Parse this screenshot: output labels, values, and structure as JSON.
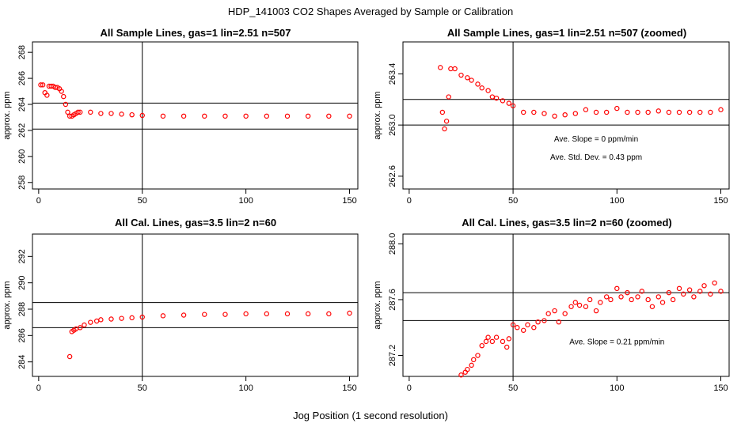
{
  "page": {
    "title": "HDP_141003  CO2 Shapes Averaged by Sample or Calibration",
    "xlabel": "Jog Position (1 second resolution)"
  },
  "colors": {
    "points": "#ff0000",
    "lines": "#000000",
    "frame": "#000000"
  },
  "chart_data": [
    {
      "type": "scatter",
      "title": "All Sample Lines, gas=1 lin=2.51 n=507",
      "ylabel": "approx. ppm",
      "xlim": [
        -3,
        154
      ],
      "ylim": [
        257.5,
        268.8
      ],
      "xticks": [
        0,
        50,
        100,
        150
      ],
      "yticks": [
        258,
        260,
        262,
        264,
        266,
        268
      ],
      "vline": 50,
      "hlines": [
        262.1,
        264.1
      ],
      "annotations": [],
      "series": [
        {
          "x": [
            1,
            2,
            3,
            4,
            5,
            6,
            7,
            8,
            9,
            10,
            11,
            12,
            13,
            14,
            15,
            16,
            17,
            18,
            19,
            20,
            25,
            30,
            35,
            40,
            45,
            50,
            60,
            70,
            80,
            90,
            100,
            110,
            120,
            130,
            140,
            150
          ],
          "y": [
            265.5,
            265.5,
            264.9,
            264.7,
            265.4,
            265.4,
            265.4,
            265.3,
            265.3,
            265.2,
            265.0,
            264.6,
            264.0,
            263.4,
            263.1,
            263.1,
            263.2,
            263.3,
            263.4,
            263.4,
            263.4,
            263.3,
            263.3,
            263.25,
            263.2,
            263.15,
            263.1,
            263.1,
            263.1,
            263.1,
            263.1,
            263.1,
            263.1,
            263.1,
            263.1,
            263.1
          ]
        }
      ]
    },
    {
      "type": "scatter",
      "title": "All Sample Lines, gas=1 lin=2.51 n=507 (zoomed)",
      "ylabel": "approx. ppm",
      "xlim": [
        -3,
        154
      ],
      "ylim": [
        262.5,
        263.65
      ],
      "xticks": [
        0,
        50,
        100,
        150
      ],
      "yticks": [
        262.6,
        263.0,
        263.4
      ],
      "ytick_labels": [
        "262.6",
        "263.0",
        "263.4"
      ],
      "vline": 50,
      "hlines": [
        263.0,
        263.2
      ],
      "annotations": [
        {
          "text": "Ave. Slope =  0  ppm/min",
          "x": 90,
          "y": 262.87
        },
        {
          "text": "Ave. Std. Dev. =  0.43  ppm",
          "x": 90,
          "y": 262.73
        }
      ],
      "series": [
        {
          "x": [
            15,
            16,
            17,
            18,
            19,
            20,
            22,
            25,
            28,
            30,
            33,
            35,
            38,
            40,
            42,
            45,
            48,
            50,
            55,
            60,
            65,
            70,
            75,
            80,
            85,
            90,
            95,
            100,
            105,
            110,
            115,
            120,
            125,
            130,
            135,
            140,
            145,
            150
          ],
          "y": [
            263.45,
            263.1,
            262.97,
            263.03,
            263.22,
            263.44,
            263.44,
            263.39,
            263.37,
            263.35,
            263.32,
            263.29,
            263.27,
            263.22,
            263.21,
            263.19,
            263.17,
            263.15,
            263.1,
            263.1,
            263.09,
            263.07,
            263.08,
            263.09,
            263.12,
            263.1,
            263.1,
            263.13,
            263.1,
            263.1,
            263.1,
            263.11,
            263.1,
            263.1,
            263.1,
            263.1,
            263.1,
            263.12
          ]
        }
      ]
    },
    {
      "type": "scatter",
      "title": "All Cal. Lines, gas=3.5 lin=2 n=60",
      "ylabel": "approx. ppm",
      "xlim": [
        -3,
        154
      ],
      "ylim": [
        282.9,
        293.7
      ],
      "xticks": [
        0,
        50,
        100,
        150
      ],
      "yticks": [
        284,
        286,
        288,
        290,
        292
      ],
      "vline": 50,
      "hlines": [
        286.6,
        288.5
      ],
      "annotations": [],
      "series": [
        {
          "x": [
            15,
            16,
            17,
            18,
            20,
            22,
            25,
            28,
            30,
            35,
            40,
            45,
            50,
            60,
            70,
            80,
            90,
            100,
            110,
            120,
            130,
            140,
            150
          ],
          "y": [
            284.4,
            286.3,
            286.4,
            286.5,
            286.6,
            286.8,
            287.0,
            287.1,
            287.2,
            287.25,
            287.3,
            287.35,
            287.4,
            287.5,
            287.55,
            287.6,
            287.6,
            287.65,
            287.65,
            287.65,
            287.65,
            287.65,
            287.7
          ]
        }
      ]
    },
    {
      "type": "scatter",
      "title": "All Cal. Lines, gas=3.5 lin=2 n=60 (zoomed)",
      "ylabel": "approx. ppm",
      "xlim": [
        -3,
        154
      ],
      "ylim": [
        287.05,
        288.07
      ],
      "xticks": [
        0,
        50,
        100,
        150
      ],
      "yticks": [
        287.2,
        287.6,
        288.0
      ],
      "ytick_labels": [
        "287.2",
        "287.6",
        "288.0"
      ],
      "vline": 50,
      "hlines": [
        287.45,
        287.65
      ],
      "annotations": [
        {
          "text": "Ave. Slope =  0.21  ppm/min",
          "x": 100,
          "y": 287.28
        }
      ],
      "series": [
        {
          "x": [
            25,
            27,
            28,
            30,
            31,
            33,
            35,
            37,
            38,
            40,
            42,
            45,
            47,
            48,
            50,
            52,
            55,
            57,
            60,
            62,
            65,
            67,
            70,
            72,
            75,
            78,
            80,
            82,
            85,
            87,
            90,
            92,
            95,
            97,
            100,
            102,
            105,
            107,
            110,
            112,
            115,
            117,
            120,
            122,
            125,
            127,
            130,
            132,
            135,
            137,
            140,
            142,
            145,
            147,
            150
          ],
          "y": [
            287.06,
            287.08,
            287.1,
            287.13,
            287.17,
            287.2,
            287.27,
            287.3,
            287.33,
            287.3,
            287.33,
            287.3,
            287.26,
            287.32,
            287.42,
            287.4,
            287.38,
            287.42,
            287.4,
            287.44,
            287.45,
            287.5,
            287.52,
            287.44,
            287.5,
            287.55,
            287.58,
            287.56,
            287.55,
            287.6,
            287.52,
            287.58,
            287.62,
            287.6,
            287.68,
            287.62,
            287.65,
            287.6,
            287.62,
            287.66,
            287.6,
            287.55,
            287.62,
            287.58,
            287.65,
            287.6,
            287.68,
            287.64,
            287.67,
            287.62,
            287.66,
            287.7,
            287.64,
            287.72,
            287.66
          ]
        }
      ]
    }
  ]
}
